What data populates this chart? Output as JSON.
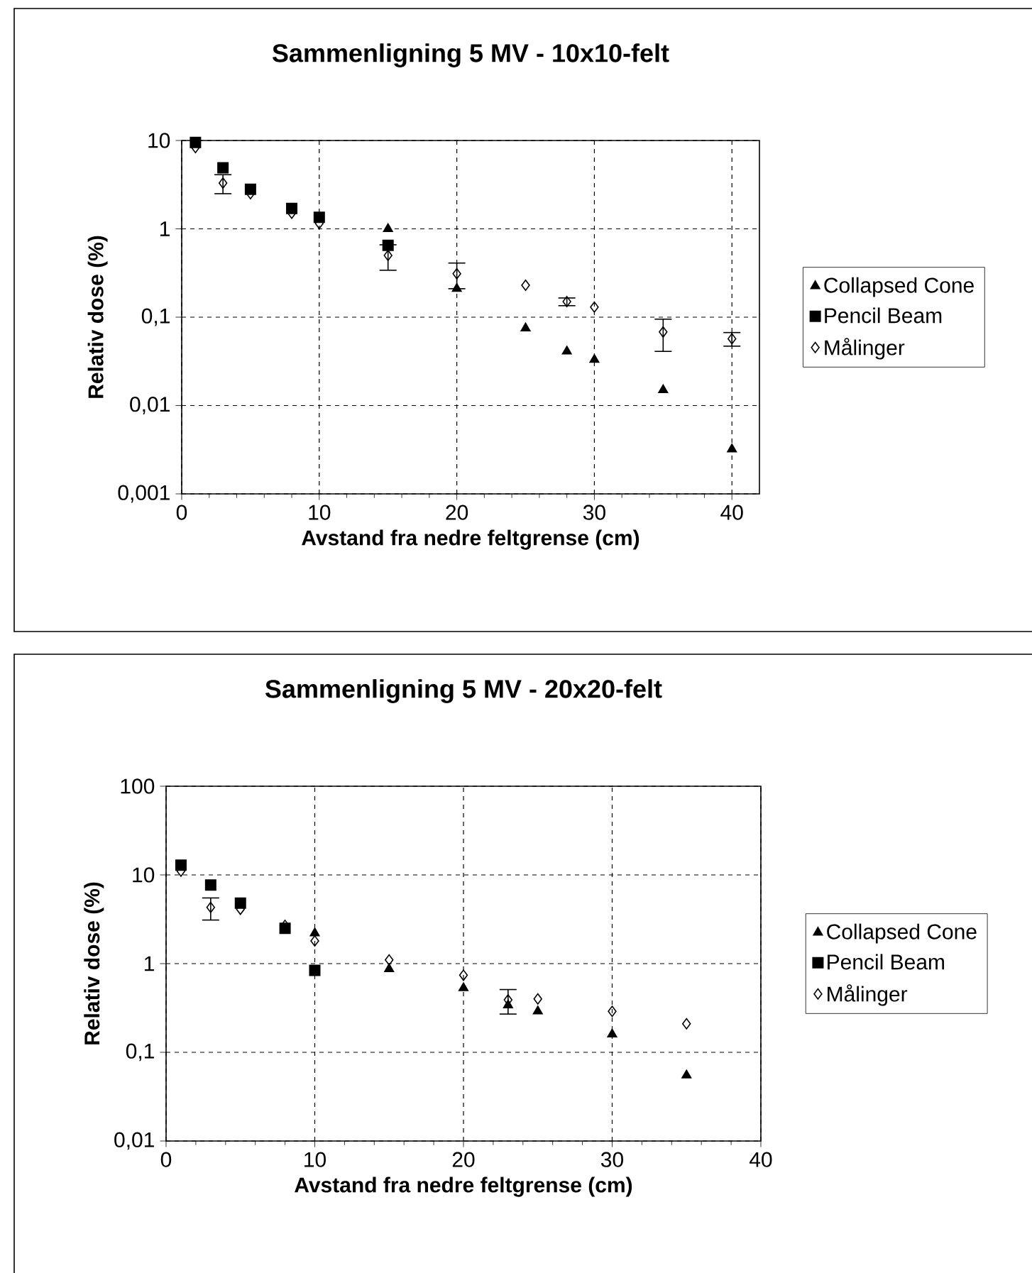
{
  "chart_data": [
    {
      "type": "scatter",
      "title": "Sammenligning 5 MV - 10x10-felt",
      "xlabel": "Avstand fra nedre feltgrense (cm)",
      "ylabel": "Relativ dose (%)",
      "log": "y",
      "grid": true,
      "legend": "right",
      "xlim": [
        0,
        42
      ],
      "ylim": [
        0.001,
        10
      ],
      "xticks": [
        0,
        10,
        20,
        30,
        40
      ],
      "yticks": [
        {
          "value": 0.001,
          "label": "0,001"
        },
        {
          "value": 0.01,
          "label": "0,01"
        },
        {
          "value": 0.1,
          "label": "0,1"
        },
        {
          "value": 1,
          "label": "1"
        },
        {
          "value": 10,
          "label": "10"
        }
      ],
      "series": [
        {
          "name": "Collapsed Cone",
          "color": "#000000",
          "marker": "triangle",
          "x": [
            15,
            20,
            25,
            28,
            30,
            35,
            40
          ],
          "values": [
            1.0,
            0.21,
            0.075,
            0.041,
            0.033,
            0.015,
            0.0032
          ]
        },
        {
          "name": "Pencil Beam",
          "color": "#000000",
          "marker": "square",
          "x": [
            1,
            3,
            5,
            8,
            10,
            15
          ],
          "values": [
            9.5,
            4.9,
            2.8,
            1.7,
            1.35,
            0.65
          ]
        },
        {
          "name": "Målinger",
          "color": "#000000",
          "marker": "diamond",
          "x": [
            1,
            3,
            5,
            8,
            10,
            15,
            20,
            25,
            28,
            30,
            35,
            40
          ],
          "values": [
            8.3,
            3.3,
            2.5,
            1.5,
            1.15,
            0.5,
            0.31,
            0.23,
            0.15,
            0.13,
            0.068,
            0.057
          ],
          "errors": [
            null,
            0.8,
            null,
            null,
            null,
            0.16,
            0.1,
            null,
            0.015,
            null,
            0.027,
            0.01
          ]
        }
      ]
    },
    {
      "type": "scatter",
      "title": "Sammenligning 5 MV - 20x20-felt",
      "xlabel": "Avstand fra nedre feltgrense (cm)",
      "ylabel": "Relativ dose (%)",
      "log": "y",
      "grid": true,
      "legend": "right",
      "xlim": [
        0,
        40
      ],
      "ylim": [
        0.01,
        100
      ],
      "xticks": [
        0,
        10,
        20,
        30,
        40
      ],
      "yticks": [
        {
          "value": 0.01,
          "label": "0,01"
        },
        {
          "value": 0.1,
          "label": "0,1"
        },
        {
          "value": 1,
          "label": "1"
        },
        {
          "value": 10,
          "label": "10"
        },
        {
          "value": 100,
          "label": "100"
        }
      ],
      "series": [
        {
          "name": "Collapsed Cone",
          "color": "#000000",
          "marker": "triangle",
          "x": [
            10,
            15,
            20,
            23,
            25,
            30,
            35
          ],
          "values": [
            2.2,
            0.87,
            0.53,
            0.34,
            0.29,
            0.16,
            0.055
          ]
        },
        {
          "name": "Pencil Beam",
          "color": "#000000",
          "marker": "square",
          "x": [
            1,
            3,
            5,
            8,
            10
          ],
          "values": [
            12.9,
            7.7,
            4.8,
            2.5,
            0.84
          ]
        },
        {
          "name": "Målinger",
          "color": "#000000",
          "marker": "diamond",
          "x": [
            1,
            3,
            5,
            8,
            10,
            15,
            20,
            23,
            25,
            30,
            35
          ],
          "values": [
            11,
            4.3,
            4.1,
            2.7,
            1.8,
            1.1,
            0.74,
            0.39,
            0.4,
            0.29,
            0.21
          ],
          "errors": [
            null,
            1.2,
            null,
            null,
            null,
            null,
            null,
            0.12,
            null,
            null,
            null
          ]
        }
      ]
    }
  ]
}
